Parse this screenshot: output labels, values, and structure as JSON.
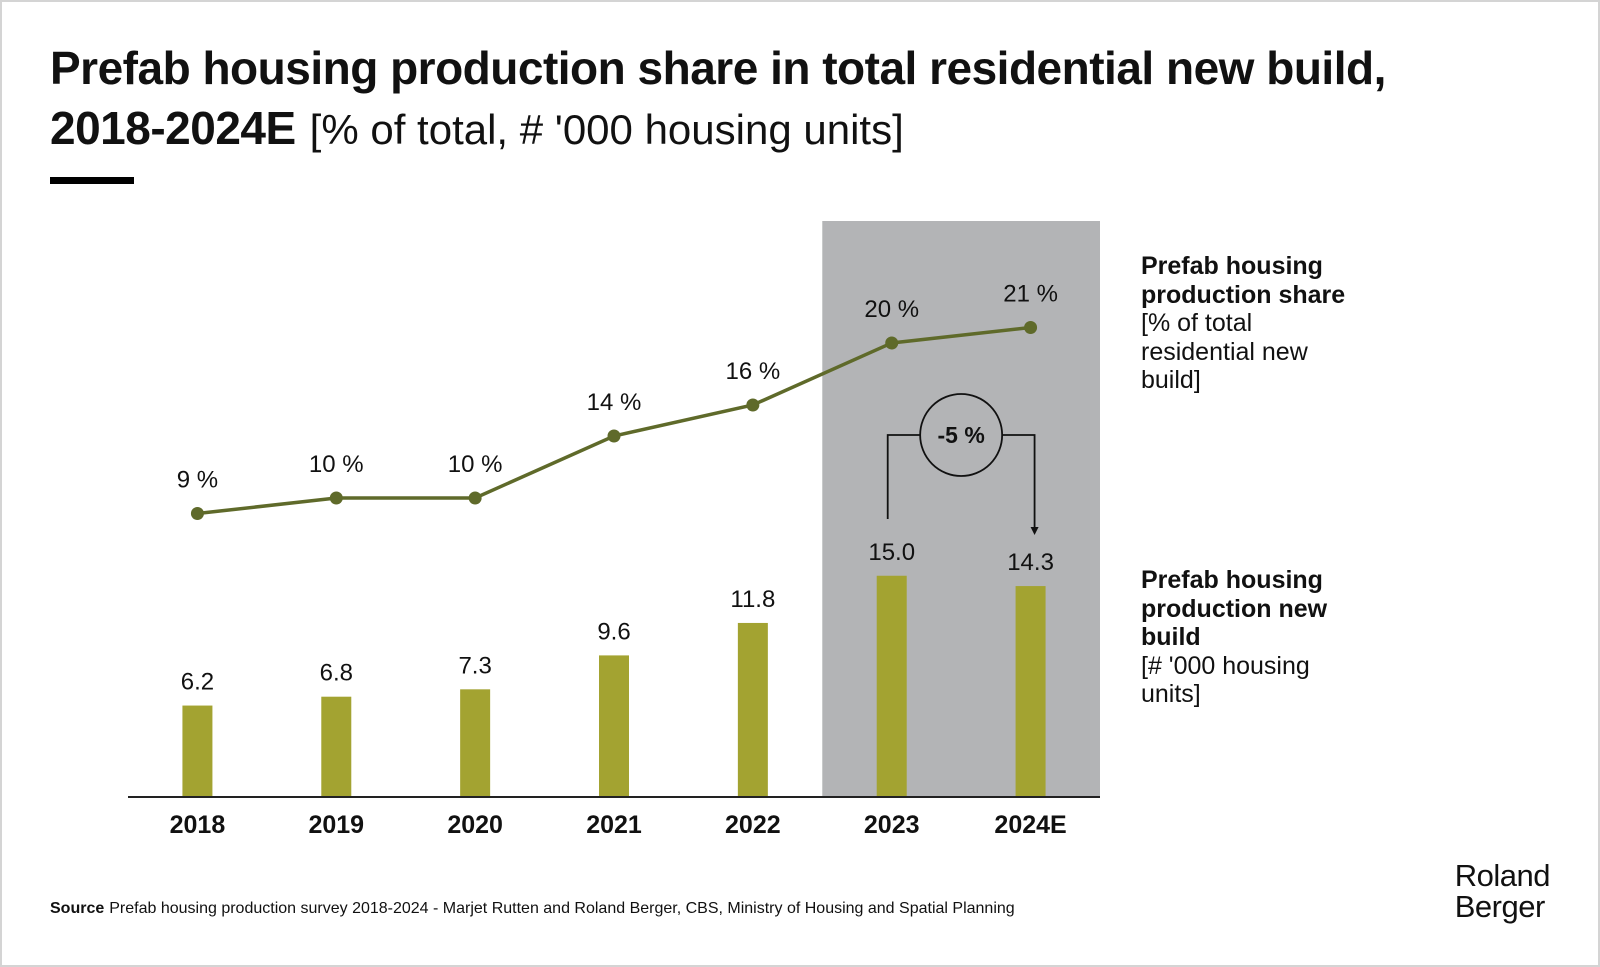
{
  "header": {
    "title_line1": "Prefab housing production share in total residential new build,",
    "title_line2": "2018-2024E",
    "title_unit": "[% of total, # '000 housing units]"
  },
  "chart_data": {
    "type": "bar+line",
    "categories": [
      "2018",
      "2019",
      "2020",
      "2021",
      "2022",
      "2023",
      "2024E"
    ],
    "series": [
      {
        "name": "Prefab housing production new build",
        "unit": "# '000 housing units",
        "type": "bar",
        "values": [
          6.2,
          6.8,
          7.3,
          9.6,
          11.8,
          15.0,
          14.3
        ],
        "labels": [
          "6.2",
          "6.8",
          "7.3",
          "9.6",
          "11.8",
          "15.0",
          "14.3"
        ],
        "color": "#a3a331"
      },
      {
        "name": "Prefab housing production share",
        "unit": "% of total residential new build",
        "type": "line",
        "values": [
          9,
          10,
          10,
          14,
          16,
          20,
          21
        ],
        "labels": [
          "9 %",
          "10 %",
          "10 %",
          "14 %",
          "16 %",
          "20 %",
          "21 %"
        ],
        "color": "#5f6a2a"
      }
    ],
    "highlight_categories": [
      "2023",
      "2024E"
    ],
    "highlight_color": "#b3b4b6",
    "annotation": {
      "label": "-5 %",
      "from": "2023",
      "to": "2024E"
    },
    "axis_color": "#222222"
  },
  "legend": {
    "share": {
      "name": "Prefab housing production share",
      "unit": "[% of total residential new build]"
    },
    "build": {
      "name": "Prefab housing production new build",
      "unit": "[# '000 housing units]"
    }
  },
  "footer": {
    "source_label": "Source",
    "source_text": "Prefab housing production survey 2018-2024 - Marjet Rutten and Roland Berger, CBS, Ministry of Housing and Spatial Planning",
    "brand_line1": "Roland",
    "brand_line2": "Berger"
  }
}
